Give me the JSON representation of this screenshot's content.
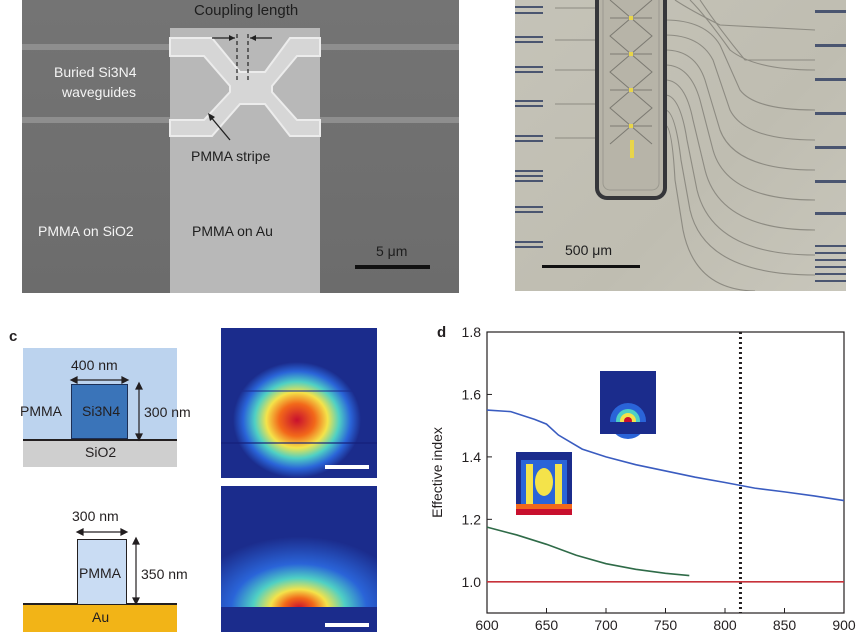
{
  "panel_a": {
    "label_coupling": "Coupling length",
    "label_buried": "Buried Si3N4",
    "label_buried_line2": "waveguides",
    "label_pmma_stripe": "PMMA stripe",
    "label_pmma_sio2": "PMMA on SiO2",
    "label_pmma_au": "PMMA on Au",
    "scalebar": "5 μm"
  },
  "panel_b": {
    "scalebar": "500 μm"
  },
  "panel_c": {
    "letter": "c",
    "top": {
      "width_label": "400 nm",
      "height_label": "300 nm",
      "cladding": "PMMA",
      "core": "Si3N4",
      "substrate": "SiO2"
    },
    "bottom": {
      "width_label": "300 nm",
      "height_label": "350 nm",
      "core": "PMMA",
      "substrate": "Au"
    }
  },
  "colors": {
    "pmma_cladding": "#bcd3ee",
    "si3n4_core": "#3a74b9",
    "sio2": "#cfcfcf",
    "gold": "#f2b417",
    "pmma_core": "#c9dcf3",
    "mode_bg": "#1b2c8c",
    "curve_si3n4": "#3a5cc0",
    "curve_plasmonic": "#2f6b48",
    "line_red": "#c8323a"
  },
  "chart_data": {
    "letter": "d",
    "type": "line",
    "ylabel": "Effective index",
    "xlabel": "",
    "xlim": [
      600,
      900
    ],
    "ylim": [
      0.9,
      1.8
    ],
    "x_ticks": [
      600,
      650,
      700,
      750,
      800,
      850,
      900
    ],
    "y_ticks": [
      1.0,
      1.2,
      1.4,
      1.6,
      1.8
    ],
    "vline_x": 813,
    "series": [
      {
        "color": "#3a5cc0",
        "x": [
          600,
          620,
          640,
          650,
          660,
          680,
          700,
          725,
          750,
          775,
          800,
          825,
          850,
          875,
          900
        ],
        "y": [
          1.55,
          1.545,
          1.52,
          1.505,
          1.47,
          1.425,
          1.4,
          1.375,
          1.355,
          1.335,
          1.318,
          1.3,
          1.288,
          1.275,
          1.26
        ]
      },
      {
        "color": "#2f6b48",
        "x": [
          600,
          625,
          650,
          675,
          700,
          725,
          750,
          770
        ],
        "y": [
          1.175,
          1.15,
          1.12,
          1.085,
          1.058,
          1.04,
          1.027,
          1.02
        ]
      },
      {
        "color": "#c8323a",
        "x": [
          600,
          900
        ],
        "y": [
          1.0,
          1.0
        ]
      }
    ]
  }
}
